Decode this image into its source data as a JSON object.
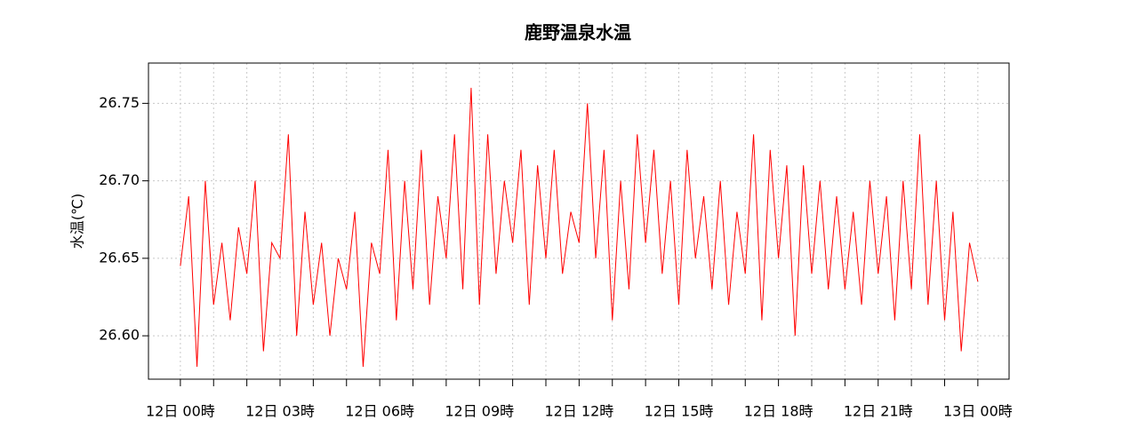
{
  "chart_data": {
    "type": "line",
    "title": "鹿野温泉水温",
    "ylabel": "水温(℃)",
    "x": [
      0,
      0.25,
      0.5,
      0.75,
      1,
      1.25,
      1.5,
      1.75,
      2,
      2.25,
      2.5,
      2.75,
      3,
      3.25,
      3.5,
      3.75,
      4,
      4.25,
      4.5,
      4.75,
      5,
      5.25,
      5.5,
      5.75,
      6,
      6.25,
      6.5,
      6.75,
      7,
      7.25,
      7.5,
      7.75,
      8,
      8.25,
      8.5,
      8.75,
      9,
      9.25,
      9.5,
      9.75,
      10,
      10.25,
      10.5,
      10.75,
      11,
      11.25,
      11.5,
      11.75,
      12,
      12.25,
      12.5,
      12.75,
      13,
      13.25,
      13.5,
      13.75,
      14,
      14.25,
      14.5,
      14.75,
      15,
      15.25,
      15.5,
      15.75,
      16,
      16.25,
      16.5,
      16.75,
      17,
      17.25,
      17.5,
      17.75,
      18,
      18.25,
      18.5,
      18.75,
      19,
      19.25,
      19.5,
      19.75,
      20,
      20.25,
      20.5,
      20.75,
      21,
      21.25,
      21.5,
      21.75,
      22,
      22.25,
      22.5,
      22.75,
      23,
      23.25,
      23.5,
      23.75,
      24
    ],
    "series": [
      {
        "name": "水温",
        "color": "#ff0000",
        "values": [
          26.645,
          26.69,
          26.58,
          26.7,
          26.62,
          26.66,
          26.61,
          26.67,
          26.64,
          26.7,
          26.59,
          26.66,
          26.65,
          26.73,
          26.6,
          26.68,
          26.62,
          26.66,
          26.6,
          26.65,
          26.63,
          26.68,
          26.58,
          26.66,
          26.64,
          26.72,
          26.61,
          26.7,
          26.63,
          26.72,
          26.62,
          26.69,
          26.65,
          26.73,
          26.63,
          26.76,
          26.62,
          26.73,
          26.64,
          26.7,
          26.66,
          26.72,
          26.62,
          26.71,
          26.65,
          26.72,
          26.64,
          26.68,
          26.66,
          26.75,
          26.65,
          26.72,
          26.61,
          26.7,
          26.63,
          26.73,
          26.66,
          26.72,
          26.64,
          26.7,
          26.62,
          26.72,
          26.65,
          26.69,
          26.63,
          26.7,
          26.62,
          26.68,
          26.64,
          26.73,
          26.61,
          26.72,
          26.65,
          26.71,
          26.6,
          26.71,
          26.64,
          26.7,
          26.63,
          26.69,
          26.63,
          26.68,
          26.62,
          26.7,
          26.64,
          26.69,
          26.61,
          26.7,
          26.63,
          26.73,
          26.62,
          26.7,
          26.61,
          26.68,
          26.59,
          26.66,
          26.635
        ]
      }
    ],
    "xlim": [
      -0.96,
      24.94
    ],
    "ylim": [
      26.572,
      26.776
    ],
    "xticks": [
      {
        "value": 0,
        "label": "12日 00時"
      },
      {
        "value": 3,
        "label": "12日 03時"
      },
      {
        "value": 6,
        "label": "12日 06時"
      },
      {
        "value": 9,
        "label": "12日 09時"
      },
      {
        "value": 12,
        "label": "12日 12時"
      },
      {
        "value": 15,
        "label": "12日 15時"
      },
      {
        "value": 18,
        "label": "12日 18時"
      },
      {
        "value": 21,
        "label": "12日 21時"
      },
      {
        "value": 24,
        "label": "13日 00時"
      }
    ],
    "xminor_ticks": [
      1,
      2,
      4,
      5,
      7,
      8,
      10,
      11,
      13,
      14,
      16,
      17,
      19,
      20,
      22,
      23
    ],
    "yticks": [
      {
        "value": 26.6,
        "label": "26.60"
      },
      26.65,
      {
        "value": 26.7,
        "label": "26.70"
      },
      26.75
    ],
    "grid": true
  }
}
